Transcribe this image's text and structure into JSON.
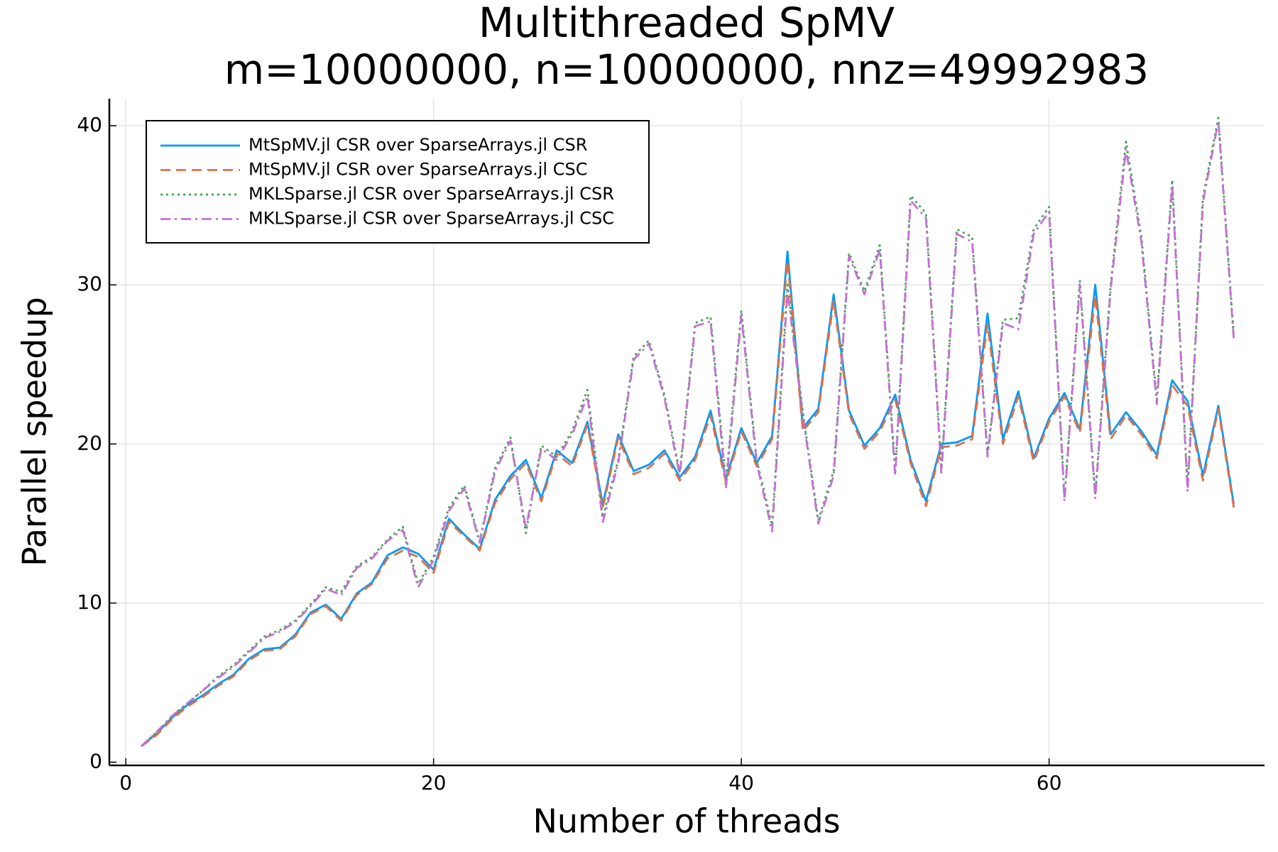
{
  "chart_data": {
    "type": "line",
    "title": "Multithreaded SpMV",
    "subtitle": "m=10000000, n=10000000, nnz=49992983",
    "x_label": "Number of threads",
    "y_label": "Parallel speedup",
    "x": [
      1,
      2,
      3,
      4,
      5,
      6,
      7,
      8,
      9,
      10,
      11,
      12,
      13,
      14,
      15,
      16,
      17,
      18,
      19,
      20,
      21,
      22,
      23,
      24,
      25,
      26,
      27,
      28,
      29,
      30,
      31,
      32,
      33,
      34,
      35,
      36,
      37,
      38,
      39,
      40,
      41,
      42,
      43,
      44,
      45,
      46,
      47,
      48,
      49,
      50,
      51,
      52,
      53,
      54,
      55,
      56,
      57,
      58,
      59,
      60,
      61,
      62,
      63,
      64,
      65,
      66,
      67,
      68,
      69,
      70,
      71,
      72
    ],
    "series": [
      {
        "name": "MtSpMV.jl CSR over SparseArrays.jl CSR",
        "color": "#009af9",
        "dash": "solid",
        "values": [
          1.0,
          1.8,
          2.8,
          3.6,
          4.2,
          4.9,
          5.5,
          6.5,
          7.1,
          7.2,
          8.0,
          9.4,
          9.9,
          9.0,
          10.6,
          11.3,
          13.0,
          13.5,
          13.1,
          12.1,
          15.3,
          14.3,
          13.4,
          16.5,
          18.0,
          19.0,
          16.6,
          19.6,
          18.8,
          21.4,
          16.2,
          20.6,
          18.3,
          18.7,
          19.6,
          17.9,
          19.2,
          22.1,
          17.8,
          21.0,
          18.8,
          20.5,
          32.1,
          21.0,
          22.2,
          29.4,
          22.1,
          19.9,
          21.0,
          23.1,
          19.0,
          16.4,
          20.0,
          20.1,
          20.5,
          28.2,
          20.3,
          23.3,
          19.1,
          21.6,
          23.2,
          20.9,
          30.0,
          20.6,
          22.0,
          20.8,
          19.3,
          24.0,
          22.7,
          18.0,
          22.4,
          16.2
        ]
      },
      {
        "name": "MtSpMV.jl CSR over SparseArrays.jl CSC",
        "color": "#e26f46",
        "dash": "dash",
        "values": [
          1.0,
          1.7,
          2.7,
          3.5,
          4.1,
          4.8,
          5.4,
          6.4,
          7.0,
          7.1,
          7.9,
          9.3,
          9.8,
          8.9,
          10.5,
          11.2,
          12.8,
          13.3,
          12.9,
          11.9,
          15.1,
          14.2,
          13.3,
          16.3,
          17.8,
          18.8,
          16.4,
          19.4,
          18.6,
          21.2,
          16.0,
          20.4,
          18.1,
          18.5,
          19.4,
          17.7,
          19.0,
          21.8,
          17.6,
          20.8,
          18.6,
          20.3,
          31.5,
          20.8,
          22.0,
          29.0,
          21.9,
          19.7,
          20.8,
          22.8,
          18.8,
          16.1,
          19.8,
          19.9,
          20.3,
          27.5,
          20.0,
          23.0,
          18.9,
          21.4,
          23.0,
          20.7,
          29.3,
          20.3,
          21.8,
          20.6,
          19.1,
          23.7,
          22.4,
          17.7,
          22.2,
          16.0
        ]
      },
      {
        "name": "MKLSparse.jl CSR over SparseArrays.jl CSR",
        "color": "#3da44d",
        "dash": "dot",
        "values": [
          1.0,
          1.9,
          2.9,
          3.7,
          4.5,
          5.4,
          6.1,
          7.0,
          7.9,
          8.3,
          8.9,
          9.9,
          11.0,
          10.7,
          12.3,
          12.9,
          14.0,
          14.8,
          11.2,
          12.9,
          16.0,
          17.4,
          13.9,
          18.5,
          20.4,
          14.4,
          19.9,
          19.2,
          20.8,
          23.4,
          15.4,
          19.0,
          25.5,
          26.5,
          23.1,
          18.2,
          27.6,
          28.0,
          17.6,
          28.4,
          19.0,
          14.9,
          30.0,
          22.0,
          15.2,
          18.3,
          32.0,
          29.6,
          32.5,
          18.3,
          35.6,
          34.5,
          18.5,
          33.5,
          33.0,
          19.4,
          27.8,
          27.9,
          33.5,
          34.9,
          16.6,
          30.3,
          16.8,
          30.0,
          39.0,
          33.0,
          22.8,
          36.6,
          17.3,
          35.5,
          40.5,
          26.8
        ]
      },
      {
        "name": "MKLSparse.jl CSR over SparseArrays.jl CSC",
        "color": "#c271d2",
        "dash": "dashdot",
        "values": [
          1.0,
          1.9,
          2.9,
          3.7,
          4.5,
          5.3,
          6.0,
          6.9,
          7.8,
          8.2,
          8.8,
          9.8,
          10.9,
          10.5,
          12.2,
          12.8,
          13.9,
          14.6,
          11.0,
          12.7,
          15.8,
          17.2,
          13.8,
          18.3,
          20.2,
          14.7,
          19.7,
          19.0,
          20.6,
          23.0,
          15.1,
          18.8,
          25.3,
          26.3,
          22.9,
          18.0,
          27.4,
          27.7,
          17.2,
          28.1,
          18.8,
          14.5,
          29.6,
          21.8,
          15.0,
          18.0,
          31.8,
          29.4,
          32.2,
          18.0,
          35.3,
          34.2,
          18.2,
          33.2,
          32.7,
          19.2,
          27.6,
          27.2,
          33.2,
          34.6,
          16.4,
          30.0,
          16.6,
          29.7,
          38.5,
          32.7,
          22.5,
          36.3,
          17.0,
          35.2,
          40.3,
          26.6
        ]
      }
    ],
    "xlim": [
      -1.07,
      74.0
    ],
    "ylim": [
      -0.2,
      41.7
    ],
    "xticks": [
      0,
      20,
      40,
      60
    ],
    "yticks": [
      0,
      10,
      20,
      30,
      40
    ],
    "grid": true,
    "legend": "top-left"
  }
}
